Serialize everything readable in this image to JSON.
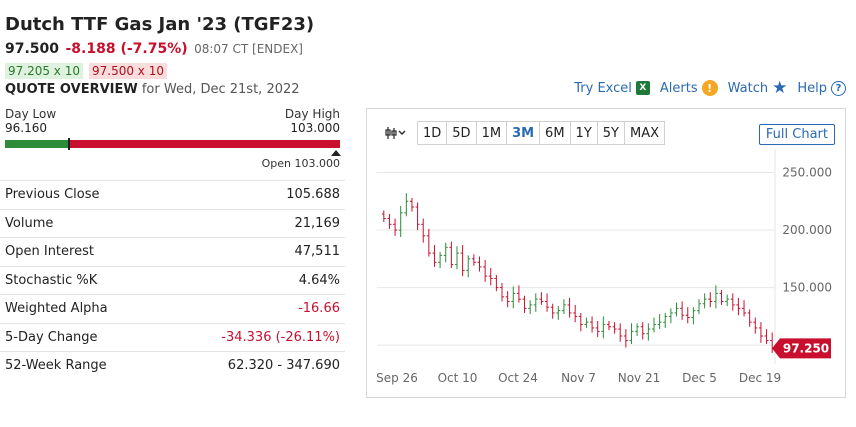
{
  "header": {
    "title": "Dutch TTF Gas Jan '23 (TGF23)",
    "last": "97.500",
    "change": "-8.188 (-7.75%)",
    "time": "08:07 CT [ENDEX]",
    "bid": "97.205 x 10",
    "ask": "97.500 x 10",
    "quote_overview": "QUOTE OVERVIEW",
    "quote_date": "for Wed, Dec 21st, 2022"
  },
  "links": {
    "excel": "Try Excel",
    "alerts": "Alerts",
    "watch": "Watch",
    "help": "Help"
  },
  "icons": {
    "excel": "excel-icon",
    "alerts": "alert-icon",
    "watch": "star-icon",
    "help": "help-icon",
    "chart_type": "candlestick-icon"
  },
  "range": {
    "low_label": "Day Low",
    "low_value": "96.160",
    "high_label": "Day High",
    "high_value": "103.000",
    "open_label": "Open 103.000",
    "position": 0.19
  },
  "stats": [
    {
      "label": "Previous Close",
      "value": "105.688",
      "neg": false
    },
    {
      "label": "Volume",
      "value": "21,169",
      "neg": false
    },
    {
      "label": "Open Interest",
      "value": "47,511",
      "neg": false
    },
    {
      "label": "Stochastic %K",
      "value": "4.64%",
      "neg": false
    },
    {
      "label": "Weighted Alpha",
      "value": "-16.66",
      "neg": true
    },
    {
      "label": "5-Day Change",
      "value": "-34.336 (-26.11%)",
      "neg": true
    },
    {
      "label": "52-Week Range",
      "value": "62.320 - 347.690",
      "neg": false
    }
  ],
  "chart": {
    "periods": [
      "1D",
      "5D",
      "1M",
      "3M",
      "6M",
      "1Y",
      "5Y",
      "MAX"
    ],
    "active_period": "3M",
    "full_chart": "Full Chart",
    "last_badge": "97.250"
  },
  "colors": {
    "up": "#2e8b3a",
    "down": "#c8102e",
    "link": "#2a6ab3"
  },
  "chart_data": {
    "type": "candlestick",
    "x_ticks": [
      "Sep 26",
      "Oct 10",
      "Oct 24",
      "Nov 7",
      "Nov 21",
      "Dec 5",
      "Dec 19"
    ],
    "y_ticks": [
      "250.000",
      "200.000",
      "150.000"
    ],
    "ylim": [
      88,
      260
    ],
    "last": 97.25,
    "closes": [
      210,
      205,
      200,
      215,
      225,
      220,
      205,
      195,
      180,
      172,
      178,
      185,
      170,
      180,
      165,
      175,
      172,
      168,
      160,
      158,
      150,
      142,
      138,
      145,
      140,
      132,
      135,
      140,
      138,
      133,
      128,
      130,
      135,
      128,
      125,
      118,
      120,
      115,
      112,
      118,
      116,
      114,
      108,
      104,
      112,
      116,
      110,
      114,
      118,
      120,
      125,
      128,
      132,
      126,
      124,
      130,
      136,
      140,
      138,
      145,
      138,
      140,
      135,
      132,
      128,
      120,
      115,
      108,
      104,
      97.25
    ]
  }
}
